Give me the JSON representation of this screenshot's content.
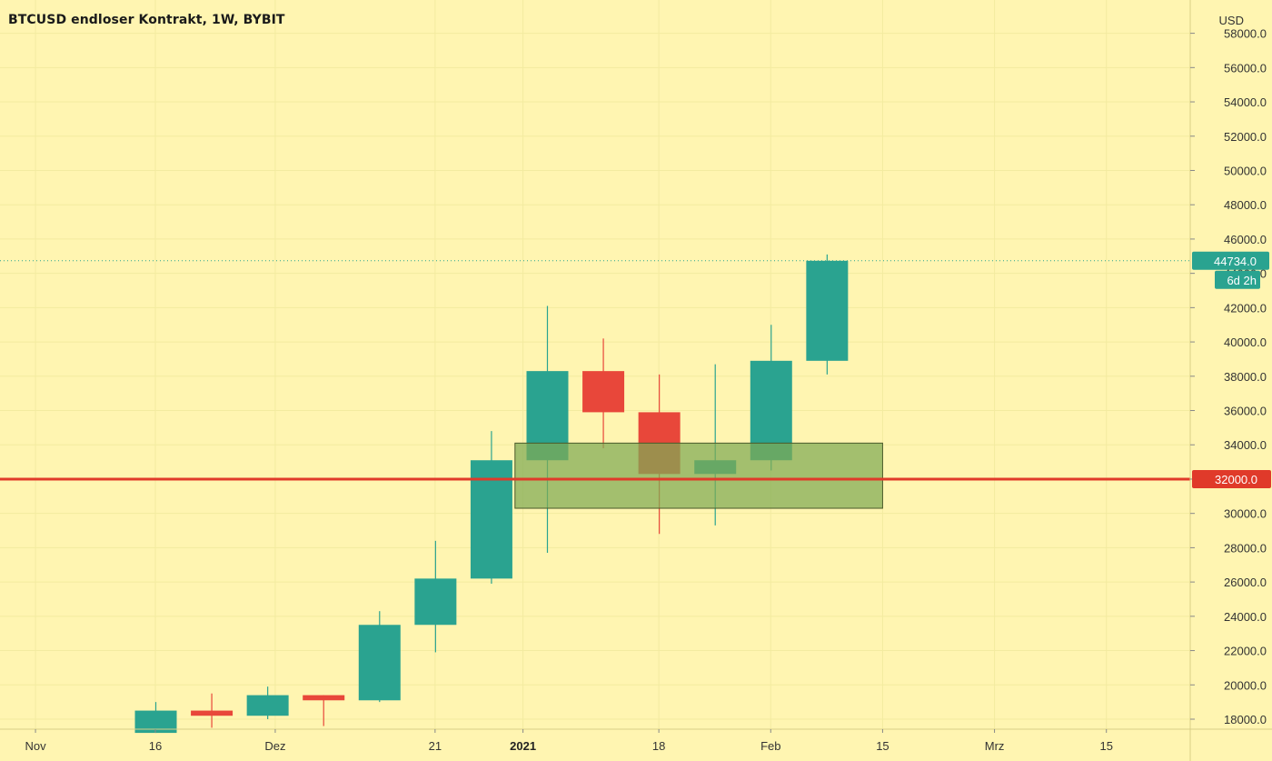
{
  "title": "BTCUSD endloser Kontrakt, 1W, BYBIT",
  "currency": "USD",
  "colors": {
    "background": "#fff5b1",
    "up": "#2aa390",
    "down": "#e8473a",
    "level_line": "#e03a2a",
    "zone_fill": "#7faa55",
    "grid": "#f3eba0"
  },
  "chart_data": {
    "type": "candlestick",
    "interval": "1W",
    "ylim": [
      17200,
      59300
    ],
    "y_ticks": [
      18000,
      20000,
      22000,
      24000,
      26000,
      28000,
      30000,
      32000,
      34000,
      36000,
      38000,
      40000,
      42000,
      44000,
      46000,
      48000,
      50000,
      52000,
      54000,
      56000,
      58000
    ],
    "y_tick_labels": [
      "18000.0",
      "20000.0",
      "22000.0",
      "24000.0",
      "26000.0",
      "28000.0",
      "30000.0",
      "32000.0",
      "34000.0",
      "36000.0",
      "38000.0",
      "40000.0",
      "42000.0",
      "44000.0",
      "46000.0",
      "48000.0",
      "50000.0",
      "52000.0",
      "54000.0",
      "56000.0",
      "58000.0"
    ],
    "x_ticks": [
      {
        "label": "Nov",
        "date": "2020-11-01",
        "bold": false
      },
      {
        "label": "16",
        "date": "2020-11-16",
        "bold": false
      },
      {
        "label": "Dez",
        "date": "2020-12-01",
        "bold": false
      },
      {
        "label": "21",
        "date": "2020-12-21",
        "bold": false
      },
      {
        "label": "2021",
        "date": "2021-01-01",
        "bold": true
      },
      {
        "label": "18",
        "date": "2021-01-18",
        "bold": false
      },
      {
        "label": "Feb",
        "date": "2021-02-01",
        "bold": false
      },
      {
        "label": "15",
        "date": "2021-02-15",
        "bold": false
      },
      {
        "label": "Mrz",
        "date": "2021-03-01",
        "bold": false
      },
      {
        "label": "15",
        "date": "2021-03-15",
        "bold": false
      }
    ],
    "candles": [
      {
        "date": "2020-11-16",
        "open": 17200,
        "high": 19000,
        "low": 17200,
        "close": 18500
      },
      {
        "date": "2020-11-23",
        "open": 18500,
        "high": 19500,
        "low": 17500,
        "close": 18200
      },
      {
        "date": "2020-11-30",
        "open": 18200,
        "high": 19900,
        "low": 18000,
        "close": 19400
      },
      {
        "date": "2020-12-07",
        "open": 19400,
        "high": 19400,
        "low": 17600,
        "close": 19100
      },
      {
        "date": "2020-12-14",
        "open": 19100,
        "high": 24300,
        "low": 19000,
        "close": 23500
      },
      {
        "date": "2020-12-21",
        "open": 23500,
        "high": 28400,
        "low": 21900,
        "close": 26200
      },
      {
        "date": "2020-12-28",
        "open": 26200,
        "high": 34800,
        "low": 25900,
        "close": 33100
      },
      {
        "date": "2021-01-04",
        "open": 33100,
        "high": 42100,
        "low": 27700,
        "close": 38300
      },
      {
        "date": "2021-01-11",
        "open": 38300,
        "high": 40200,
        "low": 33800,
        "close": 35900
      },
      {
        "date": "2021-01-18",
        "open": 35900,
        "high": 38100,
        "low": 28800,
        "close": 32300
      },
      {
        "date": "2021-01-25",
        "open": 32300,
        "high": 38700,
        "low": 29300,
        "close": 33100
      },
      {
        "date": "2021-02-01",
        "open": 33100,
        "high": 41000,
        "low": 32500,
        "close": 38900
      },
      {
        "date": "2021-02-08",
        "open": 38900,
        "high": 45100,
        "low": 38100,
        "close": 44734
      }
    ],
    "horizontal_level": {
      "value": 32000,
      "label": "32000.0"
    },
    "zone": {
      "y_low": 30300,
      "y_high": 34100,
      "x_start": "2020-12-31",
      "x_end": "2021-02-15"
    },
    "last_price": {
      "value": 44734,
      "label": "44734.0",
      "countdown": "6d 2h"
    }
  }
}
